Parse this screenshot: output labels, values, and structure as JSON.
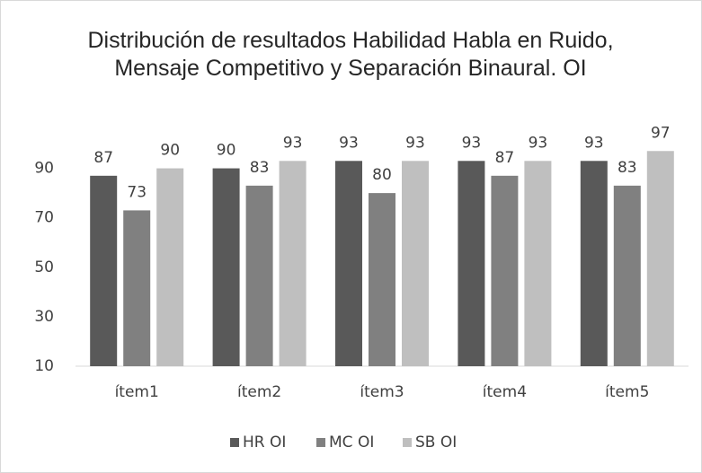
{
  "chart_data": {
    "type": "bar",
    "title": "Distribución de resultados Habilidad Habla en Ruido, Mensaje Competitivo y Separación Binaural. OI",
    "categories": [
      "ítem1",
      "ítem2",
      "ítem3",
      "ítem4",
      "ítem5"
    ],
    "series": [
      {
        "name": "HR OI",
        "color": "#595959",
        "values": [
          87,
          90,
          93,
          93,
          93
        ]
      },
      {
        "name": "MC OI",
        "color": "#808080",
        "values": [
          73,
          83,
          80,
          87,
          83
        ]
      },
      {
        "name": "SB OI",
        "color": "#bfbfbf",
        "values": [
          90,
          93,
          93,
          93,
          97
        ]
      }
    ],
    "ylim": [
      10,
      100
    ],
    "yticks": [
      10,
      30,
      50,
      70,
      90
    ],
    "grid": false,
    "legend": "bottom"
  }
}
